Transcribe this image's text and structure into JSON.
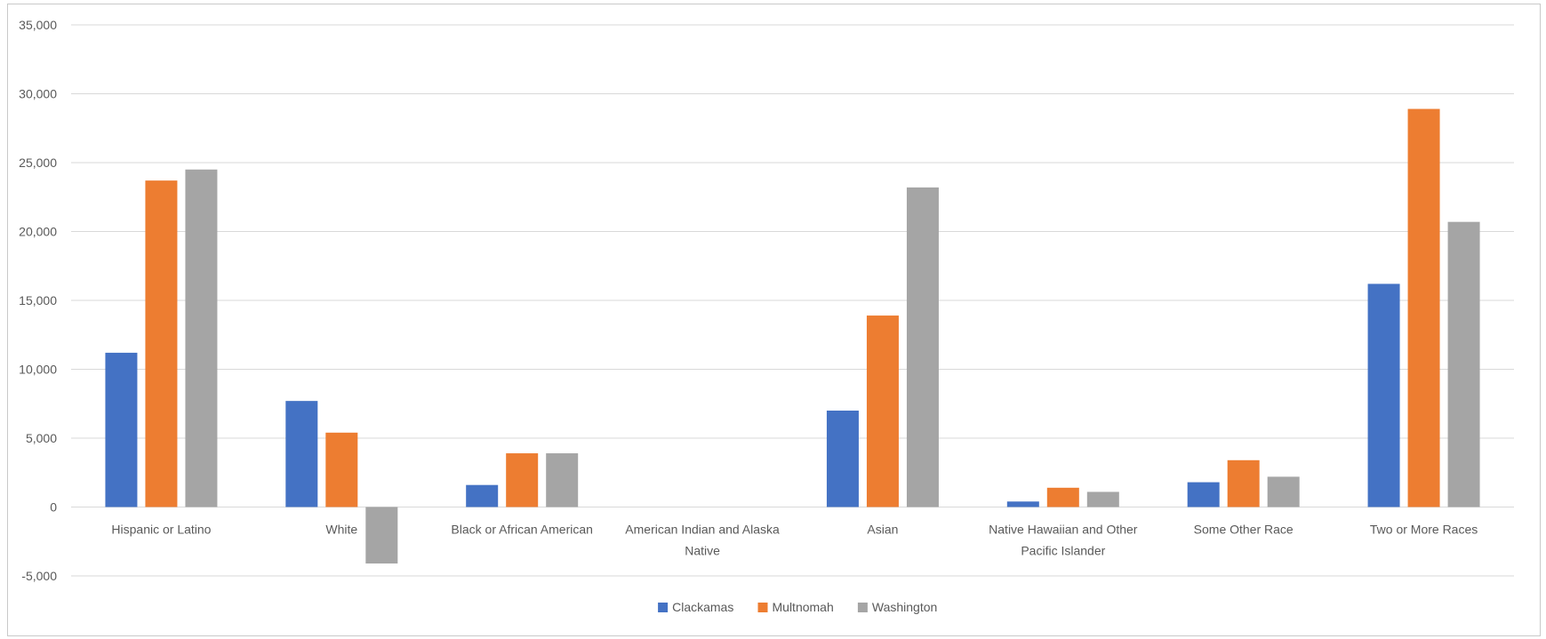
{
  "chart_data": {
    "type": "bar",
    "title": "",
    "xlabel": "",
    "ylabel": "",
    "ylim": [
      -5000,
      35000
    ],
    "yticks": [
      -5000,
      0,
      5000,
      10000,
      15000,
      20000,
      25000,
      30000,
      35000
    ],
    "ytick_labels": [
      "-5,000",
      "0",
      "5,000",
      "10,000",
      "15,000",
      "20,000",
      "25,000",
      "30,000",
      "35,000"
    ],
    "grid": true,
    "legend_position": "bottom",
    "categories": [
      [
        "Hispanic or Latino"
      ],
      [
        "White"
      ],
      [
        "Black or African American"
      ],
      [
        "American Indian and Alaska",
        "Native"
      ],
      [
        "Asian"
      ],
      [
        "Native Hawaiian and Other",
        "Pacific Islander"
      ],
      [
        "Some Other Race"
      ],
      [
        "Two or More Races"
      ]
    ],
    "series": [
      {
        "name": "Clackamas",
        "color": "#4472C4",
        "values": [
          11200,
          7700,
          1600,
          0,
          7000,
          400,
          1800,
          16200
        ]
      },
      {
        "name": "Multnomah",
        "color": "#ED7D31",
        "values": [
          23700,
          5400,
          3900,
          0,
          13900,
          1400,
          3400,
          28900
        ]
      },
      {
        "name": "Washington",
        "color": "#A5A5A5",
        "values": [
          24500,
          -4100,
          3900,
          0,
          23200,
          1100,
          2200,
          20700
        ]
      }
    ]
  }
}
